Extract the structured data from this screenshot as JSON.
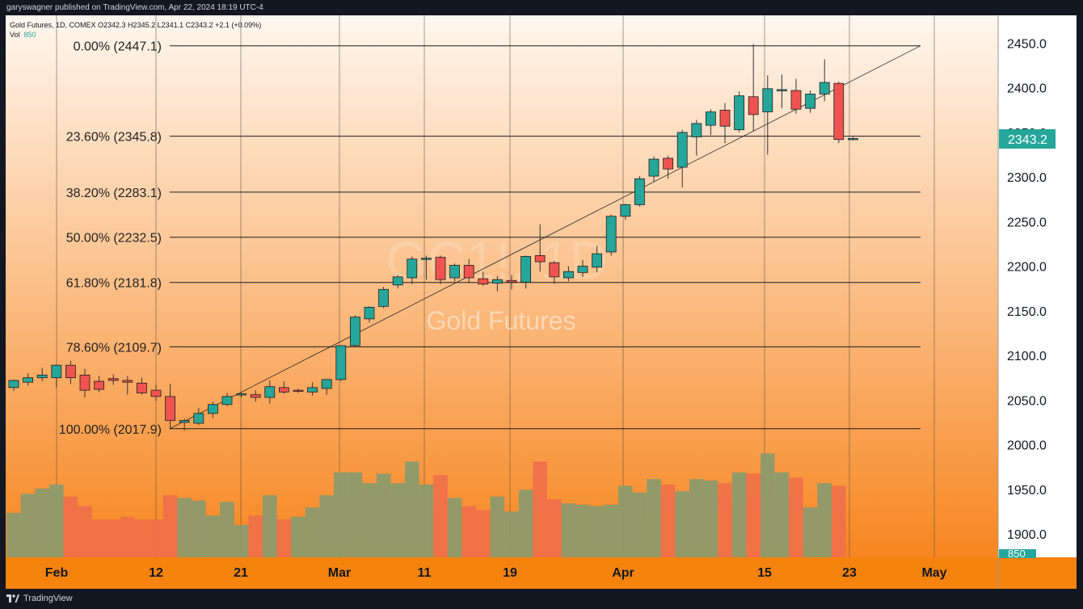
{
  "publisher_line": "garyswagner published on TradingView.com, Apr 22, 2024 18:19 UTC-4",
  "legend": {
    "symbol_line": "Gold Futures, 1D, COMEX  O2342.3  H2345.2  L2341.1  C2343.2  +2.1 (+0.09%)",
    "vol_label": "Vol",
    "vol_value": "850"
  },
  "watermark": {
    "symbol": "GC1!, 1D",
    "name": "Gold Futures"
  },
  "last_price_label": "2343.2",
  "volume_badge": "850",
  "footer_brand": "TradingView",
  "colors": {
    "up": "#26a69a",
    "down": "#ef5350",
    "badge": "#26a69a",
    "vol_up": "#8a9a6e",
    "vol_down": "#f0704a",
    "bg_top": "#fff7ef",
    "bg_bottom": "#f7861f"
  },
  "chart_data": {
    "type": "candlestick",
    "y_axis_labels": [
      "2450.0",
      "2400.0",
      "2350.0",
      "2300.0",
      "2250.0",
      "2200.0",
      "2150.0",
      "2100.0",
      "2050.0",
      "2000.0",
      "1950.0",
      "1900.0"
    ],
    "y_axis_values": [
      2450,
      2400,
      2350,
      2300,
      2250,
      2200,
      2150,
      2100,
      2050,
      2000,
      1950,
      1900
    ],
    "x_axis_labels": [
      "Feb",
      "12",
      "21",
      "Mar",
      "11",
      "19",
      "Apr",
      "15",
      "23",
      "May"
    ],
    "fib_levels": [
      {
        "label": "0.00% (2447.1)",
        "price": 2447.1
      },
      {
        "label": "23.60% (2345.8)",
        "price": 2345.8
      },
      {
        "label": "38.20% (2283.1)",
        "price": 2283.1
      },
      {
        "label": "50.00% (2232.5)",
        "price": 2232.5
      },
      {
        "label": "61.80% (2181.8)",
        "price": 2181.8
      },
      {
        "label": "78.60% (2109.7)",
        "price": 2109.7
      },
      {
        "label": "100.00% (2017.9)",
        "price": 2017.9
      }
    ],
    "trendline": {
      "from_price": 2017.9,
      "to_price": 2447.1
    },
    "candles": [
      {
        "o": 2064,
        "h": 2073,
        "l": 2060,
        "c": 2072
      },
      {
        "o": 2070,
        "h": 2080,
        "l": 2066,
        "c": 2075
      },
      {
        "o": 2075,
        "h": 2086,
        "l": 2071,
        "c": 2078
      },
      {
        "o": 2075,
        "h": 2090,
        "l": 2064,
        "c": 2089
      },
      {
        "o": 2089,
        "h": 2094,
        "l": 2068,
        "c": 2075
      },
      {
        "o": 2078,
        "h": 2085,
        "l": 2053,
        "c": 2061
      },
      {
        "o": 2071,
        "h": 2077,
        "l": 2059,
        "c": 2062
      },
      {
        "o": 2074,
        "h": 2079,
        "l": 2067,
        "c": 2072
      },
      {
        "o": 2072,
        "h": 2077,
        "l": 2056,
        "c": 2070
      },
      {
        "o": 2069,
        "h": 2075,
        "l": 2056,
        "c": 2058
      },
      {
        "o": 2061,
        "h": 2067,
        "l": 2049,
        "c": 2054
      },
      {
        "o": 2054,
        "h": 2068,
        "l": 2017,
        "c": 2027
      },
      {
        "o": 2025,
        "h": 2029,
        "l": 2016,
        "c": 2027
      },
      {
        "o": 2024,
        "h": 2041,
        "l": 2022,
        "c": 2035
      },
      {
        "o": 2035,
        "h": 2048,
        "l": 2030,
        "c": 2045
      },
      {
        "o": 2045,
        "h": 2058,
        "l": 2043,
        "c": 2054
      },
      {
        "o": 2056,
        "h": 2058,
        "l": 2053,
        "c": 2057
      },
      {
        "o": 2056,
        "h": 2061,
        "l": 2048,
        "c": 2053
      },
      {
        "o": 2053,
        "h": 2072,
        "l": 2046,
        "c": 2065
      },
      {
        "o": 2064,
        "h": 2071,
        "l": 2057,
        "c": 2059
      },
      {
        "o": 2061,
        "h": 2063,
        "l": 2058,
        "c": 2060
      },
      {
        "o": 2059,
        "h": 2070,
        "l": 2055,
        "c": 2064
      },
      {
        "o": 2063,
        "h": 2073,
        "l": 2056,
        "c": 2073
      },
      {
        "o": 2073,
        "h": 2108,
        "l": 2071,
        "c": 2111
      },
      {
        "o": 2111,
        "h": 2145,
        "l": 2110,
        "c": 2143
      },
      {
        "o": 2141,
        "h": 2155,
        "l": 2137,
        "c": 2154
      },
      {
        "o": 2155,
        "h": 2177,
        "l": 2153,
        "c": 2174
      },
      {
        "o": 2179,
        "h": 2190,
        "l": 2175,
        "c": 2188
      },
      {
        "o": 2187,
        "h": 2211,
        "l": 2180,
        "c": 2208
      },
      {
        "o": 2208,
        "h": 2212,
        "l": 2185,
        "c": 2209
      },
      {
        "o": 2210,
        "h": 2212,
        "l": 2180,
        "c": 2185
      },
      {
        "o": 2187,
        "h": 2203,
        "l": 2183,
        "c": 2201
      },
      {
        "o": 2201,
        "h": 2208,
        "l": 2181,
        "c": 2187
      },
      {
        "o": 2186,
        "h": 2194,
        "l": 2178,
        "c": 2180
      },
      {
        "o": 2181,
        "h": 2189,
        "l": 2172,
        "c": 2185
      },
      {
        "o": 2184,
        "h": 2190,
        "l": 2174,
        "c": 2182
      },
      {
        "o": 2182,
        "h": 2212,
        "l": 2175,
        "c": 2211
      },
      {
        "o": 2212,
        "h": 2247,
        "l": 2194,
        "c": 2205
      },
      {
        "o": 2204,
        "h": 2206,
        "l": 2180,
        "c": 2188
      },
      {
        "o": 2187,
        "h": 2200,
        "l": 2183,
        "c": 2194
      },
      {
        "o": 2193,
        "h": 2207,
        "l": 2188,
        "c": 2200
      },
      {
        "o": 2199,
        "h": 2223,
        "l": 2193,
        "c": 2214
      },
      {
        "o": 2216,
        "h": 2258,
        "l": 2212,
        "c": 2256
      },
      {
        "o": 2256,
        "h": 2270,
        "l": 2252,
        "c": 2269
      },
      {
        "o": 2269,
        "h": 2301,
        "l": 2267,
        "c": 2298
      },
      {
        "o": 2301,
        "h": 2323,
        "l": 2295,
        "c": 2320
      },
      {
        "o": 2321,
        "h": 2324,
        "l": 2298,
        "c": 2309
      },
      {
        "o": 2311,
        "h": 2353,
        "l": 2288,
        "c": 2350
      },
      {
        "o": 2345,
        "h": 2364,
        "l": 2324,
        "c": 2360
      },
      {
        "o": 2358,
        "h": 2376,
        "l": 2347,
        "c": 2373
      },
      {
        "o": 2375,
        "h": 2383,
        "l": 2338,
        "c": 2357
      },
      {
        "o": 2353,
        "h": 2396,
        "l": 2350,
        "c": 2391
      },
      {
        "o": 2390,
        "h": 2449,
        "l": 2351,
        "c": 2370
      },
      {
        "o": 2373,
        "h": 2414,
        "l": 2325,
        "c": 2399
      },
      {
        "o": 2398,
        "h": 2415,
        "l": 2377,
        "c": 2398
      },
      {
        "o": 2397,
        "h": 2410,
        "l": 2371,
        "c": 2376
      },
      {
        "o": 2377,
        "h": 2397,
        "l": 2372,
        "c": 2393
      },
      {
        "o": 2393,
        "h": 2432,
        "l": 2385,
        "c": 2406
      },
      {
        "o": 2405,
        "h": 2407,
        "l": 2338,
        "c": 2342
      },
      {
        "o": 2342.3,
        "h": 2345.2,
        "l": 2341.1,
        "c": 2343.2
      }
    ],
    "volume_scale_max": 100,
    "volumes": [
      33,
      47,
      51,
      54,
      45,
      38,
      28,
      28,
      30,
      28,
      28,
      46,
      44,
      42,
      31,
      41,
      24,
      31,
      46,
      28,
      30,
      37,
      46,
      63,
      63,
      55,
      62,
      55,
      71,
      54,
      61,
      44,
      38,
      35,
      45,
      34,
      50,
      71,
      43,
      40,
      39,
      38,
      39,
      53,
      48,
      58,
      54,
      49,
      58,
      57,
      55,
      63,
      62,
      77,
      63,
      59,
      37,
      55,
      53,
      0
    ],
    "volume_up": [
      1,
      1,
      1,
      1,
      0,
      0,
      0,
      0,
      0,
      0,
      0,
      0,
      1,
      1,
      1,
      1,
      1,
      0,
      1,
      0,
      1,
      1,
      1,
      1,
      1,
      1,
      1,
      1,
      1,
      1,
      0,
      1,
      0,
      0,
      1,
      1,
      1,
      0,
      0,
      1,
      1,
      1,
      1,
      1,
      1,
      1,
      0,
      1,
      1,
      1,
      0,
      1,
      0,
      1,
      1,
      0,
      1,
      1,
      0,
      1
    ]
  }
}
